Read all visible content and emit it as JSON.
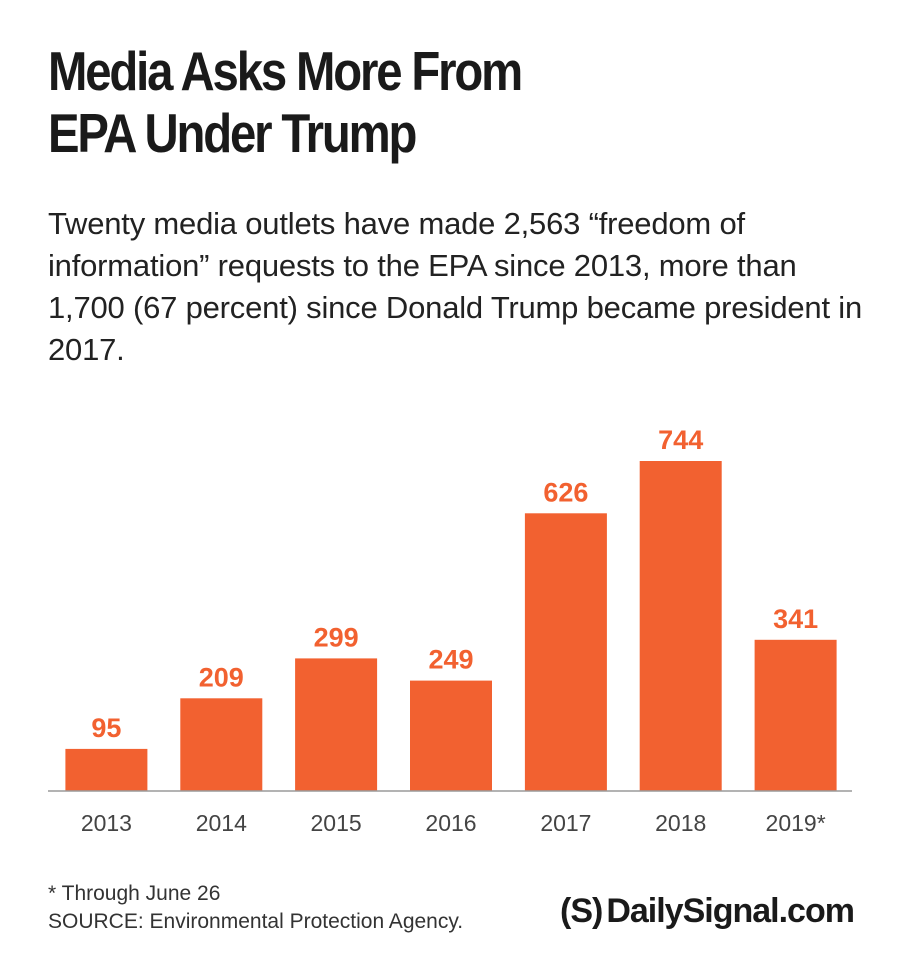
{
  "header": {
    "title_line1": "Media Asks More From",
    "title_line2": "EPA Under Trump",
    "subtitle": "Twenty media outlets have made 2,563 “freedom of information” requests to the EPA since 2013, more than 1,700 (67 percent) since Donald Trump became president in 2017."
  },
  "chart_data": {
    "type": "bar",
    "categories": [
      "2013",
      "2014",
      "2015",
      "2016",
      "2017",
      "2018",
      "2019*"
    ],
    "values": [
      95,
      209,
      299,
      249,
      626,
      744,
      341
    ],
    "title": "Media Asks More From EPA Under Trump",
    "subtitle": "Twenty media outlets have made 2,563 “freedom of information” requests to the EPA since 2013, more than 1,700 (67 percent) since Donald Trump became president in 2017.",
    "xlabel": "",
    "ylabel": "",
    "ylim": [
      0,
      744
    ],
    "grid": false,
    "legend": "none",
    "bar_color": "#f26130",
    "label_color": "#f26130"
  },
  "footer": {
    "footnote": "* Through June 26",
    "source": "SOURCE: Environmental Protection Agency.",
    "brand_mark": "(S)",
    "brand_name": "DailySignal.com"
  }
}
